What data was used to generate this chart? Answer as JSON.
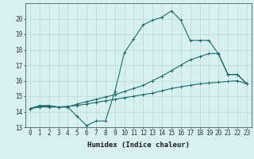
{
  "line1_x": [
    0,
    1,
    2,
    3,
    4,
    5,
    6,
    7,
    8,
    9,
    10,
    11,
    12,
    13,
    14,
    15,
    16,
    17,
    18,
    19,
    20,
    21,
    22,
    23
  ],
  "line1_y": [
    14.2,
    14.4,
    14.4,
    14.3,
    14.3,
    13.7,
    13.1,
    13.4,
    13.4,
    15.3,
    17.8,
    18.7,
    19.6,
    19.9,
    20.1,
    20.5,
    19.9,
    18.6,
    18.6,
    18.6,
    17.7,
    16.4,
    16.4,
    15.8
  ],
  "line2_x": [
    0,
    1,
    2,
    3,
    4,
    5,
    6,
    7,
    8,
    9,
    10,
    11,
    12,
    13,
    14,
    15,
    16,
    17,
    18,
    19,
    20,
    21,
    22,
    23
  ],
  "line2_y": [
    14.2,
    14.35,
    14.35,
    14.3,
    14.3,
    14.5,
    14.65,
    14.8,
    14.95,
    15.1,
    15.3,
    15.5,
    15.7,
    16.0,
    16.3,
    16.65,
    17.0,
    17.35,
    17.55,
    17.75,
    17.75,
    16.4,
    16.4,
    15.8
  ],
  "line3_x": [
    0,
    1,
    2,
    3,
    4,
    5,
    6,
    7,
    8,
    9,
    10,
    11,
    12,
    13,
    14,
    15,
    16,
    17,
    18,
    19,
    20,
    21,
    22,
    23
  ],
  "line3_y": [
    14.2,
    14.3,
    14.3,
    14.3,
    14.35,
    14.4,
    14.5,
    14.6,
    14.7,
    14.8,
    14.9,
    15.0,
    15.1,
    15.2,
    15.35,
    15.5,
    15.6,
    15.7,
    15.8,
    15.85,
    15.9,
    15.95,
    16.0,
    15.8
  ],
  "line_color": "#1a6b6b",
  "bg_color": "#d8f0f0",
  "grid_color": "#b8dada",
  "xlabel": "Humidex (Indice chaleur)",
  "ylim": [
    13,
    21
  ],
  "xlim": [
    -0.5,
    23.5
  ],
  "yticks": [
    13,
    14,
    15,
    16,
    17,
    18,
    19,
    20
  ],
  "xticks": [
    0,
    1,
    2,
    3,
    4,
    5,
    6,
    7,
    8,
    9,
    10,
    11,
    12,
    13,
    14,
    15,
    16,
    17,
    18,
    19,
    20,
    21,
    22,
    23
  ],
  "xlabel_fontsize": 6.5,
  "tick_fontsize": 5.5
}
